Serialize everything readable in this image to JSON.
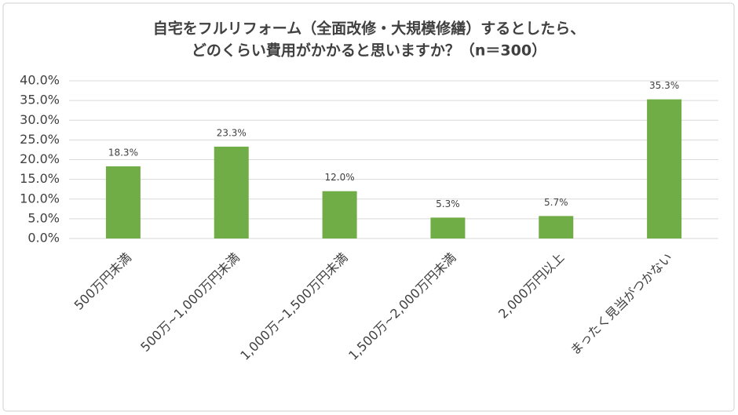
{
  "chart_data": {
    "type": "bar",
    "title": [
      "自宅をフルリフォーム（全面改修・大規模修繕）するとしたら、",
      "どのくらい費用がかかると思いますか？（n＝300）"
    ],
    "categories": [
      "500万円未満",
      "500万~1,000万円未満",
      "1,000万~1,500万円未満",
      "1,500万~2,000万円未満",
      "2,000万円以上",
      "まったく見当がつかない"
    ],
    "values": [
      18.3,
      23.3,
      12.0,
      5.3,
      5.7,
      35.3
    ],
    "value_labels": [
      "18.3%",
      "23.3%",
      "12.0%",
      "5.3%",
      "5.7%",
      "35.3%"
    ],
    "color": "#70ad47",
    "ylim": [
      0,
      40
    ],
    "yticks": [
      {
        "value": 0,
        "label": "0.0%"
      },
      {
        "value": 5,
        "label": "5.0%"
      },
      {
        "value": 10,
        "label": "10.0%"
      },
      {
        "value": 15,
        "label": "15.0%"
      },
      {
        "value": 20,
        "label": "20.0%"
      },
      {
        "value": 25,
        "label": "25.0%"
      },
      {
        "value": 30,
        "label": "30.0%"
      },
      {
        "value": 35,
        "label": "35.0%"
      },
      {
        "value": 40,
        "label": "40.0%"
      }
    ],
    "grid": true
  }
}
